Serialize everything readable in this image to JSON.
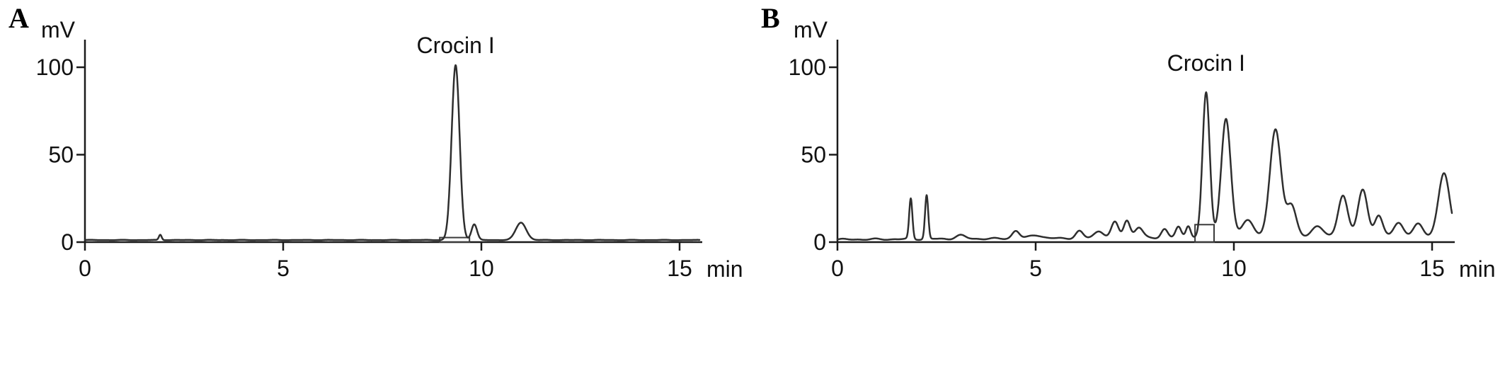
{
  "figure": {
    "background": "#ffffff",
    "panels": [
      "A",
      "B"
    ]
  },
  "chart_data": [
    {
      "type": "line",
      "panel": "A",
      "title": "",
      "xlabel": "min",
      "ylabel": "mV",
      "x_ticks": [
        0,
        5,
        10,
        15
      ],
      "y_ticks": [
        0,
        50,
        100
      ],
      "xlim": [
        0,
        15.5
      ],
      "ylim": [
        0,
        112
      ],
      "grid": false,
      "legend": false,
      "line_color": "#2e2e2e",
      "baseline_mv": 1.2,
      "baseline_slope_mv_per_min": 0,
      "noise_mv": 0.12,
      "annotation": {
        "text": "Crocin I",
        "rt": 9.35,
        "mv": 108
      },
      "integration_box": {
        "x1": 8.95,
        "x2": 9.7,
        "top_mv": 2.6
      },
      "peaks": [
        {
          "rt": 1.9,
          "height_mv": 3,
          "sigma_min": 0.035
        },
        {
          "rt": 9.35,
          "height_mv": 100,
          "sigma_min": 0.1
        },
        {
          "rt": 9.82,
          "height_mv": 9,
          "sigma_min": 0.07
        },
        {
          "rt": 11.0,
          "height_mv": 10,
          "sigma_min": 0.13
        }
      ]
    },
    {
      "type": "line",
      "panel": "B",
      "title": "",
      "xlabel": "min",
      "ylabel": "mV",
      "x_ticks": [
        0,
        5,
        10,
        15
      ],
      "y_ticks": [
        0,
        50,
        100
      ],
      "xlim": [
        0,
        15.5
      ],
      "ylim": [
        0,
        112
      ],
      "grid": false,
      "legend": false,
      "line_color": "#2e2e2e",
      "baseline_mv": 1.5,
      "baseline_slope_mv_per_min": 0.12,
      "noise_mv": 0.5,
      "annotation": {
        "text": "Crocin I",
        "rt": 9.3,
        "mv": 98
      },
      "integration_box": {
        "x1": 9.02,
        "x2": 9.5,
        "top_mv": 10
      },
      "peaks": [
        {
          "rt": 1.85,
          "height_mv": 23,
          "sigma_min": 0.04
        },
        {
          "rt": 2.25,
          "height_mv": 25,
          "sigma_min": 0.04
        },
        {
          "rt": 3.1,
          "height_mv": 2,
          "sigma_min": 0.12
        },
        {
          "rt": 4.5,
          "height_mv": 4.5,
          "sigma_min": 0.09
        },
        {
          "rt": 5.0,
          "height_mv": 2,
          "sigma_min": 0.15
        },
        {
          "rt": 6.1,
          "height_mv": 4,
          "sigma_min": 0.09
        },
        {
          "rt": 6.6,
          "height_mv": 4,
          "sigma_min": 0.12
        },
        {
          "rt": 7.0,
          "height_mv": 9,
          "sigma_min": 0.09
        },
        {
          "rt": 7.3,
          "height_mv": 10,
          "sigma_min": 0.08
        },
        {
          "rt": 7.6,
          "height_mv": 6,
          "sigma_min": 0.1
        },
        {
          "rt": 8.25,
          "height_mv": 5,
          "sigma_min": 0.08
        },
        {
          "rt": 8.6,
          "height_mv": 6,
          "sigma_min": 0.07
        },
        {
          "rt": 8.85,
          "height_mv": 7,
          "sigma_min": 0.06
        },
        {
          "rt": 9.3,
          "height_mv": 83,
          "sigma_min": 0.09
        },
        {
          "rt": 9.8,
          "height_mv": 68,
          "sigma_min": 0.12
        },
        {
          "rt": 10.35,
          "height_mv": 10,
          "sigma_min": 0.15
        },
        {
          "rt": 11.05,
          "height_mv": 62,
          "sigma_min": 0.14
        },
        {
          "rt": 11.45,
          "height_mv": 18,
          "sigma_min": 0.12
        },
        {
          "rt": 12.1,
          "height_mv": 6,
          "sigma_min": 0.15
        },
        {
          "rt": 12.75,
          "height_mv": 24,
          "sigma_min": 0.12
        },
        {
          "rt": 13.25,
          "height_mv": 27,
          "sigma_min": 0.12
        },
        {
          "rt": 13.65,
          "height_mv": 12,
          "sigma_min": 0.1
        },
        {
          "rt": 14.15,
          "height_mv": 8,
          "sigma_min": 0.12
        },
        {
          "rt": 14.65,
          "height_mv": 7,
          "sigma_min": 0.12
        },
        {
          "rt": 15.3,
          "height_mv": 36,
          "sigma_min": 0.14
        }
      ]
    }
  ]
}
